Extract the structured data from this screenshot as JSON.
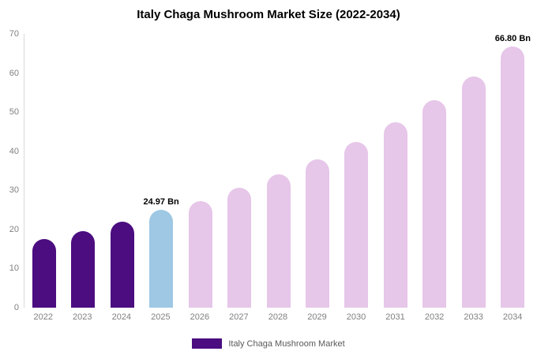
{
  "title": "Italy Chaga Mushroom Market Size (2022-2034)",
  "legend": {
    "label": "Italy Chaga Mushroom Market",
    "color": "#4b0d80"
  },
  "colors": {
    "historical": "#4b0d80",
    "base_year": "#9ec8e4",
    "forecast": "#e6c6e9"
  },
  "chart_data": {
    "type": "bar",
    "title": "Italy Chaga Mushroom Market Size (2022-2034)",
    "xlabel": "",
    "ylabel": "",
    "categories": [
      "2022",
      "2023",
      "2024",
      "2025",
      "2026",
      "2027",
      "2028",
      "2029",
      "2030",
      "2031",
      "2032",
      "2033",
      "2034"
    ],
    "values": [
      17.5,
      19.6,
      22.0,
      24.97,
      27.3,
      30.7,
      34.1,
      37.9,
      42.4,
      47.4,
      53.0,
      59.1,
      66.8
    ],
    "bar_colors": [
      "#4b0d80",
      "#4b0d80",
      "#4b0d80",
      "#9ec8e4",
      "#e6c6e9",
      "#e6c6e9",
      "#e6c6e9",
      "#e6c6e9",
      "#e6c6e9",
      "#e6c6e9",
      "#e6c6e9",
      "#e6c6e9",
      "#e6c6e9"
    ],
    "annotations": [
      {
        "category": "2025",
        "text": "24.97 Bn"
      },
      {
        "category": "2034",
        "text": "66.80 Bn"
      }
    ],
    "ylim": [
      0,
      70
    ],
    "yticks": [
      0,
      10,
      20,
      30,
      40,
      50,
      60,
      70
    ],
    "grid": false,
    "legend_position": "bottom",
    "legend_entries": [
      "Italy Chaga Mushroom Market"
    ]
  }
}
